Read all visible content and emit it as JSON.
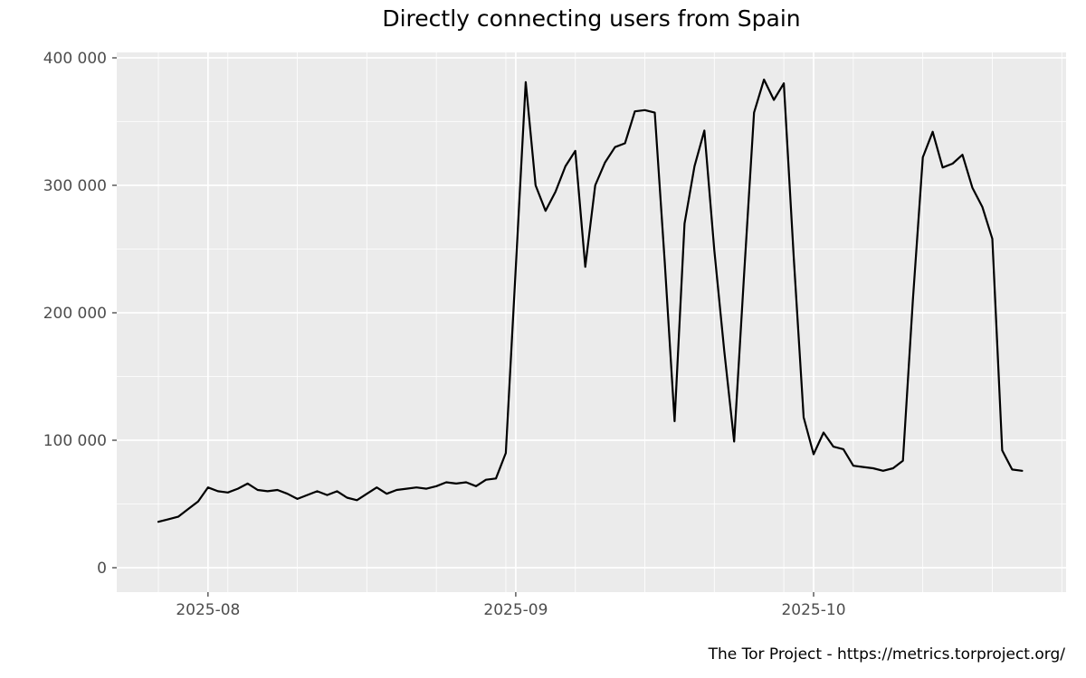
{
  "chart_data": {
    "type": "line",
    "title": "Directly connecting users from Spain",
    "country": "Spain",
    "metric": "directly-connecting-users",
    "x_start_date": "2025-07-27",
    "x_unit": "day",
    "values": [
      36000,
      38000,
      40000,
      46000,
      52000,
      63000,
      60000,
      59000,
      62000,
      66000,
      61000,
      60000,
      61000,
      58000,
      54000,
      57000,
      60000,
      57000,
      60000,
      55000,
      53000,
      58000,
      63000,
      58000,
      61000,
      62000,
      63000,
      62000,
      64000,
      67000,
      66000,
      67000,
      64000,
      69000,
      70000,
      90000,
      235000,
      381000,
      300000,
      280000,
      295000,
      315000,
      327000,
      236000,
      300000,
      318000,
      330000,
      333000,
      358000,
      359000,
      357000,
      240000,
      115000,
      270000,
      315000,
      343000,
      249000,
      170000,
      99000,
      230000,
      357000,
      383000,
      367000,
      380000,
      243000,
      118000,
      89000,
      106000,
      95000,
      93000,
      80000,
      79000,
      78000,
      76000,
      78000,
      84000,
      210000,
      322000,
      342000,
      314000,
      317000,
      324000,
      298000,
      283000,
      258000,
      92000,
      77000,
      76000
    ],
    "x_axis": {
      "major_ticks": [
        {
          "date": "2025-08-01",
          "label": "2025-08"
        },
        {
          "date": "2025-09-01",
          "label": "2025-09"
        },
        {
          "date": "2025-10-01",
          "label": "2025-10"
        }
      ],
      "minor_gridline_interval_days": 7
    },
    "y_axis": {
      "range_min": 0,
      "range_max": 400000,
      "ticks": [
        {
          "value": 0,
          "label": "0"
        },
        {
          "value": 100000,
          "label": "100 000"
        },
        {
          "value": 200000,
          "label": "200 000"
        },
        {
          "value": 300000,
          "label": "300 000"
        },
        {
          "value": 400000,
          "label": "400 000"
        }
      ],
      "minor_tick_values": [
        50000,
        150000,
        250000,
        350000
      ]
    },
    "legend": "none",
    "grid": "on",
    "colors": {
      "line": "#000000",
      "panel_background": "#EBEBEB",
      "gridline": "#FFFFFF",
      "tick_mark": "#333333",
      "tick_label": "#4D4D4D",
      "title": "#000000"
    }
  },
  "footer": {
    "text": "The Tor Project - https://metrics.torproject.org/"
  }
}
